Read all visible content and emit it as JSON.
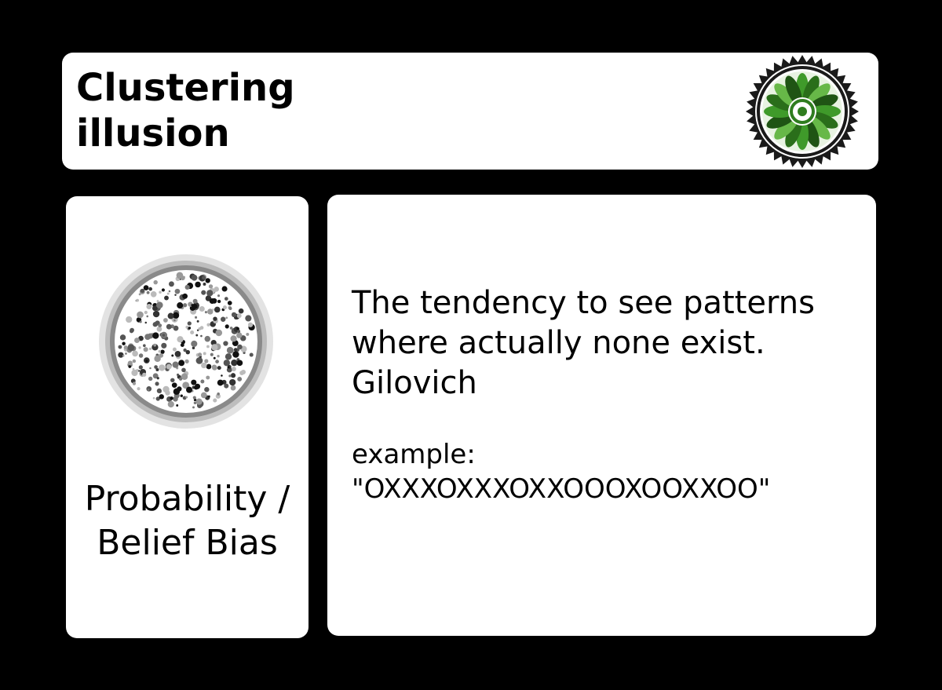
{
  "title": {
    "line1": "Clustering",
    "line2": "illusion",
    "badge_icon": "sun-mandala-badge-icon",
    "badge_accent": "#3f9a2a"
  },
  "category": {
    "icon": "random-dots-circle-icon",
    "line1": "Probability /",
    "line2": "Belief Bias"
  },
  "description": {
    "definition_line1": "The tendency to see patterns",
    "definition_line2": "where actually none exist.",
    "definition_line3": "Gilovich",
    "example_label": "example:",
    "example_value": "\"OXXXOXXXOXXOOOXOOXXOO\""
  },
  "colors": {
    "background": "#000000",
    "panel": "#ffffff",
    "text": "#000000"
  }
}
